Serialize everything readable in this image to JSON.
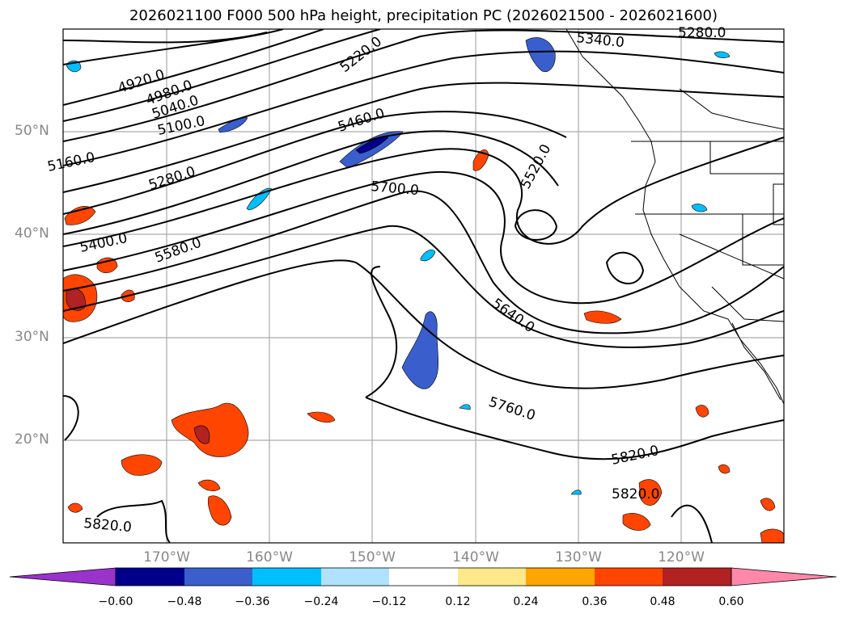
{
  "title": "2026021100 F000 500 hPa height, precipitation PC (2026021500 - 2026021600)",
  "map": {
    "latitude_labels": [
      "50°N",
      "40°N",
      "30°N",
      "20°N"
    ],
    "longitude_labels": [
      "170°W",
      "160°W",
      "150°W",
      "140°W",
      "130°W",
      "120°W"
    ],
    "gridlines": true,
    "contour_labels": [
      "4920.0",
      "4980.0",
      "5040.0",
      "5100.0",
      "5160.0",
      "5220.0",
      "5280.0",
      "5280.0",
      "5340.0",
      "5400.0",
      "5460.0",
      "5520.0",
      "5580.0",
      "5640.0",
      "5700.0",
      "5760.0",
      "5820.0",
      "5820.0",
      "5820.0"
    ]
  },
  "colorbar": {
    "ticks": [
      "−0.60",
      "−0.48",
      "−0.36",
      "−0.24",
      "−0.12",
      "0.12",
      "0.24",
      "0.36",
      "0.48",
      "0.60"
    ],
    "colors": [
      "#9933cc",
      "#00008b",
      "#3a5fcd",
      "#00bfff",
      "#b0e2ff",
      "#ffffff",
      "#ffe88a",
      "#ffa500",
      "#ff4500",
      "#b22222",
      "#ff88aa"
    ]
  }
}
